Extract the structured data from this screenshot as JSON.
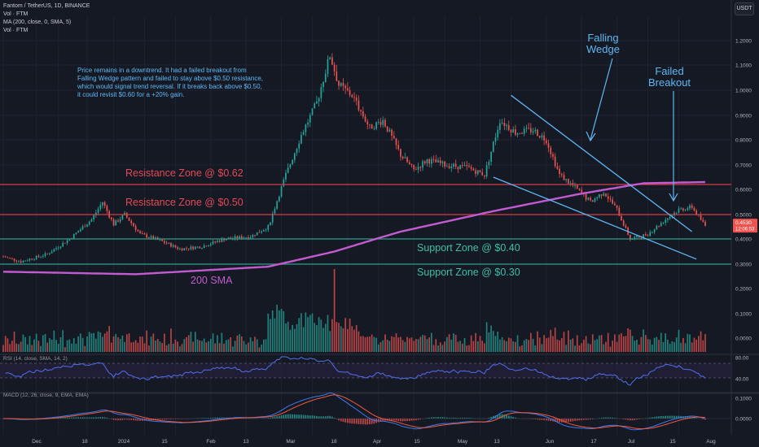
{
  "header": {
    "symbol_line": "Fantom / TetherUS, 1D, BINANCE",
    "indicator_1": "Vol · FTM",
    "indicator_2": "MA (200, close, 0, SMA, 5)",
    "indicator_3": "Vol · FTM",
    "currency_button": "USDT"
  },
  "annotations": {
    "note": "Price remains in a downtrend. It had a failed breakout from\nFalling Wedge pattern and failed to stay above $0.50 resistance,\nwhich would signal trend reversal. If it breaks back above $0.50,\nit could revisit $0.60 for a +20% gain.",
    "falling_wedge": "Falling\nWedge",
    "failed_breakout": "Failed\nBreakout",
    "resistance_062": "Resistance Zone @ $0.62",
    "resistance_050": "Resistance Zone @ $0.50",
    "support_040": "Support Zone @ $0.40",
    "support_030": "Support Zone @ $0.30",
    "sma_label": "200 SMA"
  },
  "panes": {
    "rsi_label": "RSI (14, close, SMA, 14, 2)",
    "macd_label": "MACD (12, 26, close, 9, EMA, EMA)"
  },
  "colors": {
    "up": "#26a69a",
    "down": "#ef5350",
    "resistance": "#d43d4c",
    "support": "#2e9e8a",
    "sma": "#c35bd0",
    "wedge": "#5fb8f5",
    "rsi": "#4f6ff0",
    "macd": "#3a7bf0",
    "signal": "#f5593d"
  },
  "chart_data": {
    "type": "candlestick",
    "title": "Fantom / TetherUS, 1D, BINANCE",
    "y_axis_scale": "log",
    "price_axis_ticks": [
      "1.2000",
      "1.1000",
      "1.0000",
      "0.9000",
      "0.8000",
      "0.7000",
      "0.6000",
      "0.5000",
      "0.4000",
      "0.3000",
      "0.2000",
      "0.1000",
      "0.0000"
    ],
    "volume_axis_ticks": [
      "0.2000",
      "0.1000",
      "0.0000"
    ],
    "rsi_axis_ticks": [
      "80.00",
      "40.00"
    ],
    "macd_axis_ticks": [
      "0.1000",
      "0.0000"
    ],
    "x_tick_labels": [
      "Dec",
      "18",
      "2024",
      "15",
      "Feb",
      "13",
      "Mar",
      "18",
      "Apr",
      "15",
      "May",
      "13",
      "Jun",
      "17",
      "Jul",
      "15",
      "Aug"
    ],
    "current_price": "0.4530",
    "countdown": "12:06:53",
    "levels": [
      {
        "name": "Resistance Zone @ $0.62",
        "price": 0.62
      },
      {
        "name": "Resistance Zone @ $0.50",
        "price": 0.5
      },
      {
        "name": "Support Zone @ $0.40",
        "price": 0.4
      },
      {
        "name": "Support Zone @ $0.30",
        "price": 0.3
      }
    ],
    "ohlc_anchor_points": [
      {
        "day": 0,
        "close": 0.33
      },
      {
        "day": 8,
        "close": 0.31
      },
      {
        "day": 20,
        "close": 0.34
      },
      {
        "day": 30,
        "close": 0.4
      },
      {
        "day": 40,
        "close": 0.48
      },
      {
        "day": 45,
        "close": 0.55
      },
      {
        "day": 50,
        "close": 0.46
      },
      {
        "day": 55,
        "close": 0.5
      },
      {
        "day": 62,
        "close": 0.42
      },
      {
        "day": 72,
        "close": 0.39
      },
      {
        "day": 80,
        "close": 0.36
      },
      {
        "day": 90,
        "close": 0.37
      },
      {
        "day": 100,
        "close": 0.4
      },
      {
        "day": 112,
        "close": 0.41
      },
      {
        "day": 120,
        "close": 0.45
      },
      {
        "day": 128,
        "close": 0.66
      },
      {
        "day": 135,
        "close": 0.82
      },
      {
        "day": 142,
        "close": 0.95
      },
      {
        "day": 148,
        "close": 1.14
      },
      {
        "day": 152,
        "close": 1.02
      },
      {
        "day": 158,
        "close": 0.98
      },
      {
        "day": 166,
        "close": 0.85
      },
      {
        "day": 172,
        "close": 0.88
      },
      {
        "day": 180,
        "close": 0.74
      },
      {
        "day": 186,
        "close": 0.68
      },
      {
        "day": 192,
        "close": 0.72
      },
      {
        "day": 200,
        "close": 0.7
      },
      {
        "day": 210,
        "close": 0.69
      },
      {
        "day": 218,
        "close": 0.66
      },
      {
        "day": 225,
        "close": 0.88
      },
      {
        "day": 232,
        "close": 0.83
      },
      {
        "day": 240,
        "close": 0.84
      },
      {
        "day": 246,
        "close": 0.8
      },
      {
        "day": 252,
        "close": 0.66
      },
      {
        "day": 260,
        "close": 0.6
      },
      {
        "day": 266,
        "close": 0.55
      },
      {
        "day": 272,
        "close": 0.59
      },
      {
        "day": 278,
        "close": 0.52
      },
      {
        "day": 284,
        "close": 0.4
      },
      {
        "day": 292,
        "close": 0.42
      },
      {
        "day": 300,
        "close": 0.48
      },
      {
        "day": 306,
        "close": 0.52
      },
      {
        "day": 312,
        "close": 0.53
      },
      {
        "day": 318,
        "close": 0.453
      }
    ],
    "sma_200_anchor_points": [
      {
        "day": 0,
        "value": 0.27
      },
      {
        "day": 60,
        "value": 0.26
      },
      {
        "day": 120,
        "value": 0.29
      },
      {
        "day": 150,
        "value": 0.35
      },
      {
        "day": 180,
        "value": 0.43
      },
      {
        "day": 220,
        "value": 0.51
      },
      {
        "day": 260,
        "value": 0.58
      },
      {
        "day": 290,
        "value": 0.625
      },
      {
        "day": 318,
        "value": 0.63
      }
    ],
    "falling_wedge": {
      "upper": [
        {
          "day": 230,
          "price": 0.98
        },
        {
          "day": 312,
          "price": 0.43
        }
      ],
      "lower": [
        {
          "day": 222,
          "price": 0.65
        },
        {
          "day": 314,
          "price": 0.32
        }
      ]
    }
  }
}
